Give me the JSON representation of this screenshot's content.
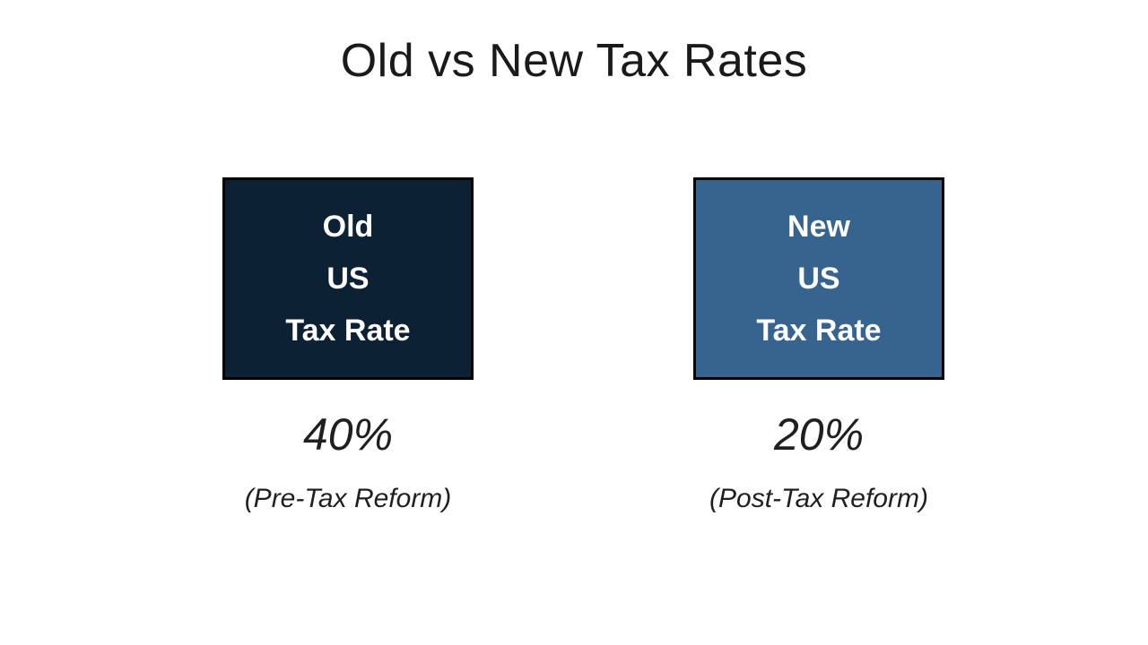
{
  "page": {
    "background": "#ffffff",
    "title": "Old vs New Tax Rates"
  },
  "chart_data": {
    "type": "table",
    "title": "Old vs New Tax Rates",
    "categories": [
      "Old US Tax Rate",
      "New US Tax Rate"
    ],
    "values": [
      40,
      20
    ],
    "value_labels": [
      "40%",
      "20%"
    ],
    "captions": [
      "(Pre-Tax Reform)",
      "(Post-Tax Reform)"
    ],
    "colors": [
      "#0C2134",
      "#36648F"
    ],
    "layout": "two side-by-side colored boxes with rate values and captions below"
  },
  "columns": [
    {
      "box_lines": [
        "Old",
        "US",
        "Tax Rate"
      ],
      "box_color": "#0C2134",
      "border_color": "#000000",
      "value": "40%",
      "caption": "(Pre-Tax Reform)"
    },
    {
      "box_lines": [
        "New",
        "US",
        "Tax Rate"
      ],
      "box_color": "#36648F",
      "border_color": "#000000",
      "value": "20%",
      "caption": "(Post-Tax Reform)"
    }
  ]
}
